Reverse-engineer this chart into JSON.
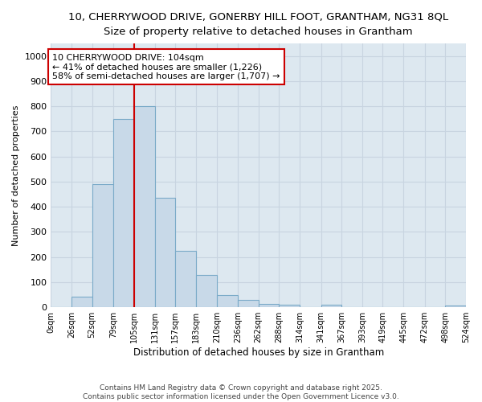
{
  "title_line1": "10, CHERRYWOOD DRIVE, GONERBY HILL FOOT, GRANTHAM, NG31 8QL",
  "title_line2": "Size of property relative to detached houses in Grantham",
  "xlabel": "Distribution of detached houses by size in Grantham",
  "ylabel": "Number of detached properties",
  "bar_edges": [
    0,
    26,
    52,
    79,
    105,
    131,
    157,
    183,
    210,
    236,
    262,
    288,
    314,
    341,
    367,
    393,
    419,
    445,
    472,
    498,
    524
  ],
  "bar_heights": [
    0,
    42,
    490,
    750,
    800,
    435,
    225,
    128,
    50,
    28,
    15,
    10,
    0,
    10,
    0,
    0,
    0,
    0,
    0,
    8
  ],
  "tick_labels": [
    "0sqm",
    "26sqm",
    "52sqm",
    "79sqm",
    "105sqm",
    "131sqm",
    "157sqm",
    "183sqm",
    "210sqm",
    "236sqm",
    "262sqm",
    "288sqm",
    "314sqm",
    "341sqm",
    "367sqm",
    "393sqm",
    "419sqm",
    "445sqm",
    "472sqm",
    "498sqm",
    "524sqm"
  ],
  "bar_color": "#c8d9e8",
  "bar_edge_color": "#7aaac8",
  "property_line_x": 105,
  "property_line_color": "#cc0000",
  "annotation_text": "10 CHERRYWOOD DRIVE: 104sqm\n← 41% of detached houses are smaller (1,226)\n58% of semi-detached houses are larger (1,707) →",
  "annotation_box_color": "#ffffff",
  "annotation_box_edge": "#cc0000",
  "ylim": [
    0,
    1050
  ],
  "yticks": [
    0,
    100,
    200,
    300,
    400,
    500,
    600,
    700,
    800,
    900,
    1000
  ],
  "grid_color": "#c8d4e0",
  "bg_color": "#dde8f0",
  "footnote": "Contains HM Land Registry data © Crown copyright and database right 2025.\nContains public sector information licensed under the Open Government Licence v3.0.",
  "title_fontsize": 9.5,
  "subtitle_fontsize": 9.0,
  "annotation_fontsize": 8.0
}
